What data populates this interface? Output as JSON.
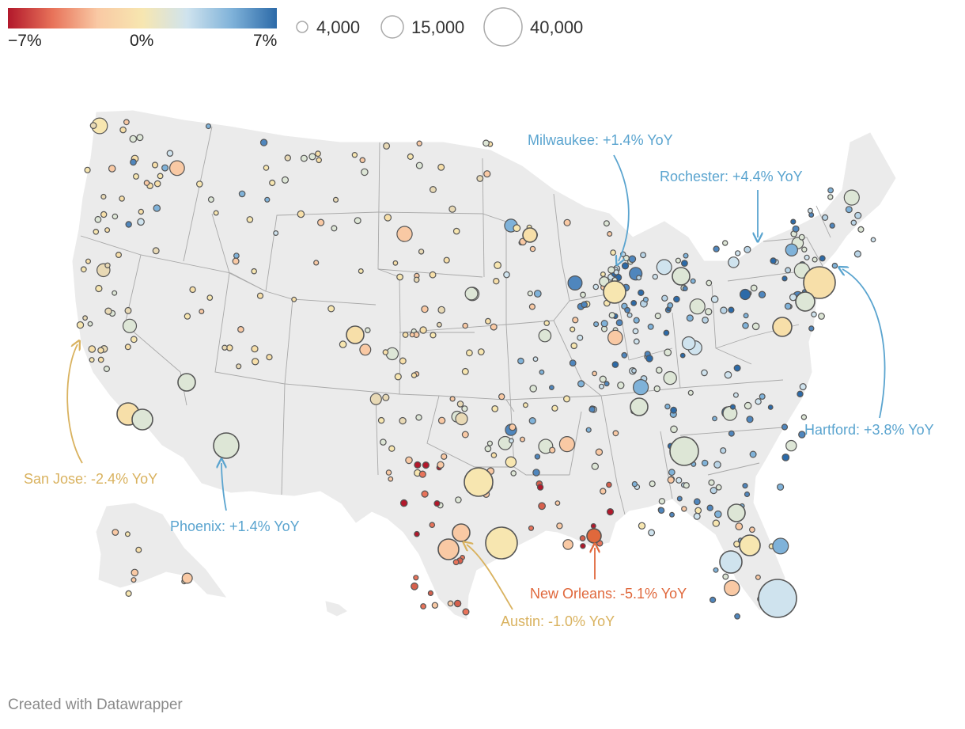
{
  "legend": {
    "color_gradient": [
      "#b2182b",
      "#e8735a",
      "#f9c9a4",
      "#f7e6b0",
      "#cfe3ee",
      "#7fb2d9",
      "#2c6aa8"
    ],
    "color_min_label": "−7%",
    "color_mid_label": "0%",
    "color_max_label": "7%",
    "sizes": [
      {
        "label": "4,000",
        "value": 4000
      },
      {
        "label": "15,000",
        "value": 15000
      },
      {
        "label": "40,000",
        "value": 40000
      }
    ]
  },
  "annotations": [
    {
      "name": "milwaukee",
      "text": "Milwaukee: +1.4% YoY",
      "value": 1.4,
      "color": "#5aa4cf"
    },
    {
      "name": "rochester",
      "text": "Rochester: +4.4% YoY",
      "value": 4.4,
      "color": "#5aa4cf"
    },
    {
      "name": "hartford",
      "text": "Hartford: +3.8% YoY",
      "value": 3.8,
      "color": "#5aa4cf"
    },
    {
      "name": "san-jose",
      "text": "San Jose: -2.4% YoY",
      "value": -2.4,
      "color": "#d9b25f"
    },
    {
      "name": "phoenix",
      "text": "Phoenix: +1.4% YoY",
      "value": 1.4,
      "color": "#5aa4cf"
    },
    {
      "name": "new-orleans",
      "text": "New Orleans: -5.1% YoY",
      "value": -5.1,
      "color": "#e0683c"
    },
    {
      "name": "austin",
      "text": "Austin: -1.0% YoY",
      "value": -1.0,
      "color": "#d9b25f"
    }
  ],
  "colors": {
    "land": "#ebebeb",
    "state_border": "#a8a8a8",
    "bubble_stroke": "#555555",
    "credit": "#8a8a8a"
  },
  "credit": "Created with Datawrapper"
}
